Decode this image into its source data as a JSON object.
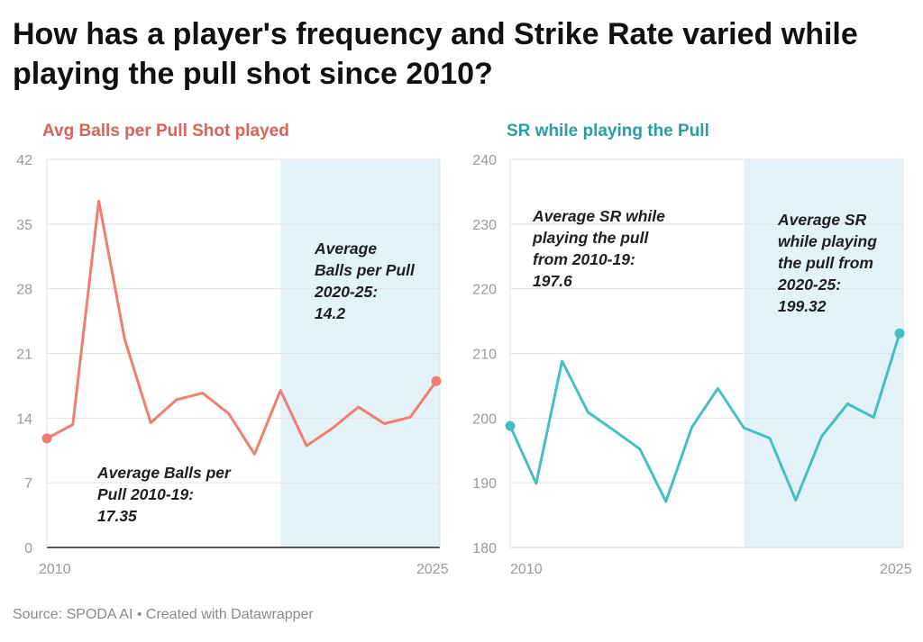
{
  "title": "How has a player's frequency and Strike Rate varied while playing the pull shot since 2010?",
  "source": "Source: SPODA AI • Created with Datawrapper",
  "colors": {
    "left_line": "#f07f72",
    "left_title": "#d9635a",
    "right_line": "#45c0c0",
    "right_title": "#2a9f9f",
    "highlight": "#e4f3f9",
    "grid": "#e2e2e2"
  },
  "chart_data": [
    {
      "type": "line",
      "title": "Avg Balls per Pull Shot played",
      "x": [
        2010,
        2011,
        2012,
        2013,
        2014,
        2015,
        2016,
        2017,
        2018,
        2019,
        2020,
        2021,
        2022,
        2023,
        2024,
        2025
      ],
      "series": [
        {
          "values": [
            11.8,
            13.3,
            37.5,
            22.5,
            13.5,
            16.0,
            16.7,
            14.5,
            10.1,
            17.0,
            11.0,
            12.9,
            15.2,
            13.4,
            14.1,
            18.0
          ]
        }
      ],
      "xlim": [
        2010,
        2025
      ],
      "ylim": [
        0,
        42
      ],
      "yticks": [
        "0",
        "7",
        "14",
        "21",
        "28",
        "35",
        "42"
      ],
      "xticks": [
        "2010",
        "2025"
      ],
      "highlight_range": [
        2019,
        2025
      ],
      "annotations": [
        {
          "lines": [
            "Average",
            "Balls per Pull",
            "2020-25:",
            "14.2"
          ]
        },
        {
          "lines": [
            "Average Balls per",
            "Pull 2010-19:",
            "17.35"
          ]
        }
      ]
    },
    {
      "type": "line",
      "title": "SR while playing the Pull",
      "x": [
        2010,
        2011,
        2012,
        2013,
        2014,
        2015,
        2016,
        2017,
        2018,
        2019,
        2020,
        2021,
        2022,
        2023,
        2024,
        2025
      ],
      "series": [
        {
          "values": [
            198.8,
            189.9,
            208.8,
            200.9,
            198.1,
            195.2,
            187.1,
            198.6,
            204.6,
            198.5,
            196.9,
            187.3,
            197.2,
            202.2,
            200.1,
            213.1
          ]
        }
      ],
      "xlim": [
        2010,
        2025
      ],
      "ylim": [
        180,
        240
      ],
      "yticks": [
        "180",
        "190",
        "200",
        "210",
        "220",
        "230",
        "240"
      ],
      "xticks": [
        "2010",
        "2025"
      ],
      "highlight_range": [
        2019,
        2025
      ],
      "annotations": [
        {
          "lines": [
            "Average SR while",
            "playing the pull",
            "from 2010-19:",
            "197.6"
          ]
        },
        {
          "lines": [
            "Average SR",
            "while playing",
            "the pull from",
            "2020-25:",
            "199.32"
          ]
        }
      ]
    }
  ]
}
